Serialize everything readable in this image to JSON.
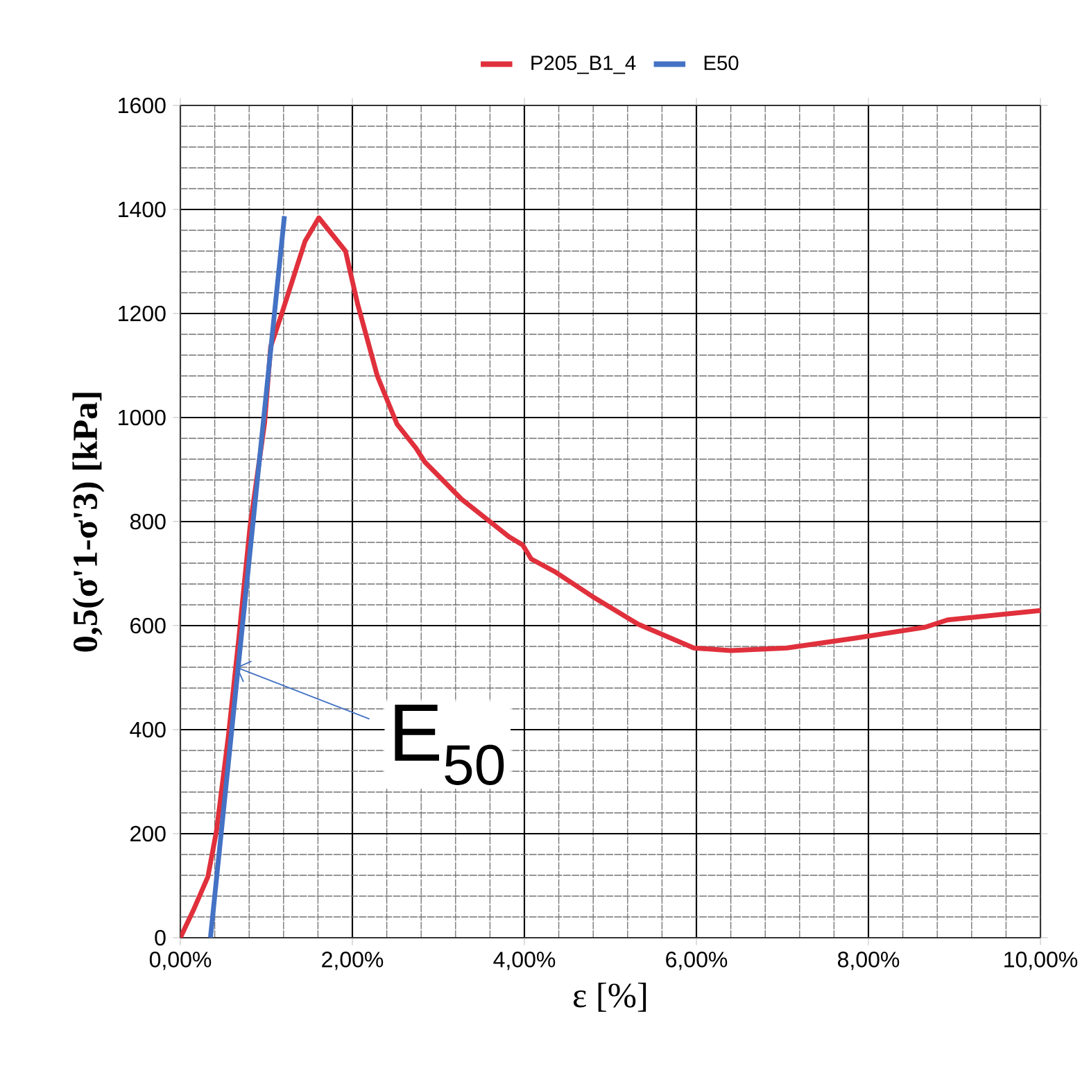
{
  "chart_data": {
    "type": "line",
    "xlabel": "ε [%]",
    "ylabel": "0,5(σ'1-σ'3) [kPa]",
    "series": [
      {
        "name": "P205_B1_4",
        "color": "#e0303c",
        "x": [
          0,
          0.16,
          0.32,
          0.42,
          0.56,
          0.68,
          0.81,
          0.98,
          1.05,
          1.18,
          1.45,
          1.61,
          1.92,
          2.06,
          2.29,
          2.52,
          2.74,
          2.84,
          3.27,
          3.82,
          3.98,
          4.08,
          4.35,
          4.79,
          5.32,
          5.97,
          6.4,
          7.05,
          7.85,
          8.66,
          8.92,
          10
        ],
        "values": [
          0,
          56,
          117,
          205,
          390,
          576,
          790,
          990,
          1136,
          1200,
          1339,
          1384,
          1320,
          1219,
          1080,
          987,
          941,
          915,
          843,
          771,
          755,
          728,
          704,
          656,
          603,
          557,
          552,
          557,
          576,
          597,
          611,
          629
        ]
      },
      {
        "name": "E50",
        "color": "#4472c4",
        "x": [
          0.35,
          1.21
        ],
        "values": [
          0,
          1387
        ]
      }
    ],
    "xlim": [
      0,
      10
    ],
    "ylim": [
      0,
      1600
    ],
    "xticks": [
      {
        "value": 0,
        "label": "0,00%"
      },
      {
        "value": 2,
        "label": "2,00%"
      },
      {
        "value": 4,
        "label": "4,00%"
      },
      {
        "value": 6,
        "label": "6,00%"
      },
      {
        "value": 8,
        "label": "8,00%"
      },
      {
        "value": 10,
        "label": "10,00%"
      }
    ],
    "yticks": [
      0,
      200,
      400,
      600,
      800,
      1000,
      1200,
      1400,
      1600
    ],
    "annotations": [
      {
        "text": "E$_{50}$",
        "x": 0.65,
        "y": 520
      }
    ],
    "grid": true,
    "legend": "top",
    "marker": "none",
    "line_style": "solid"
  }
}
